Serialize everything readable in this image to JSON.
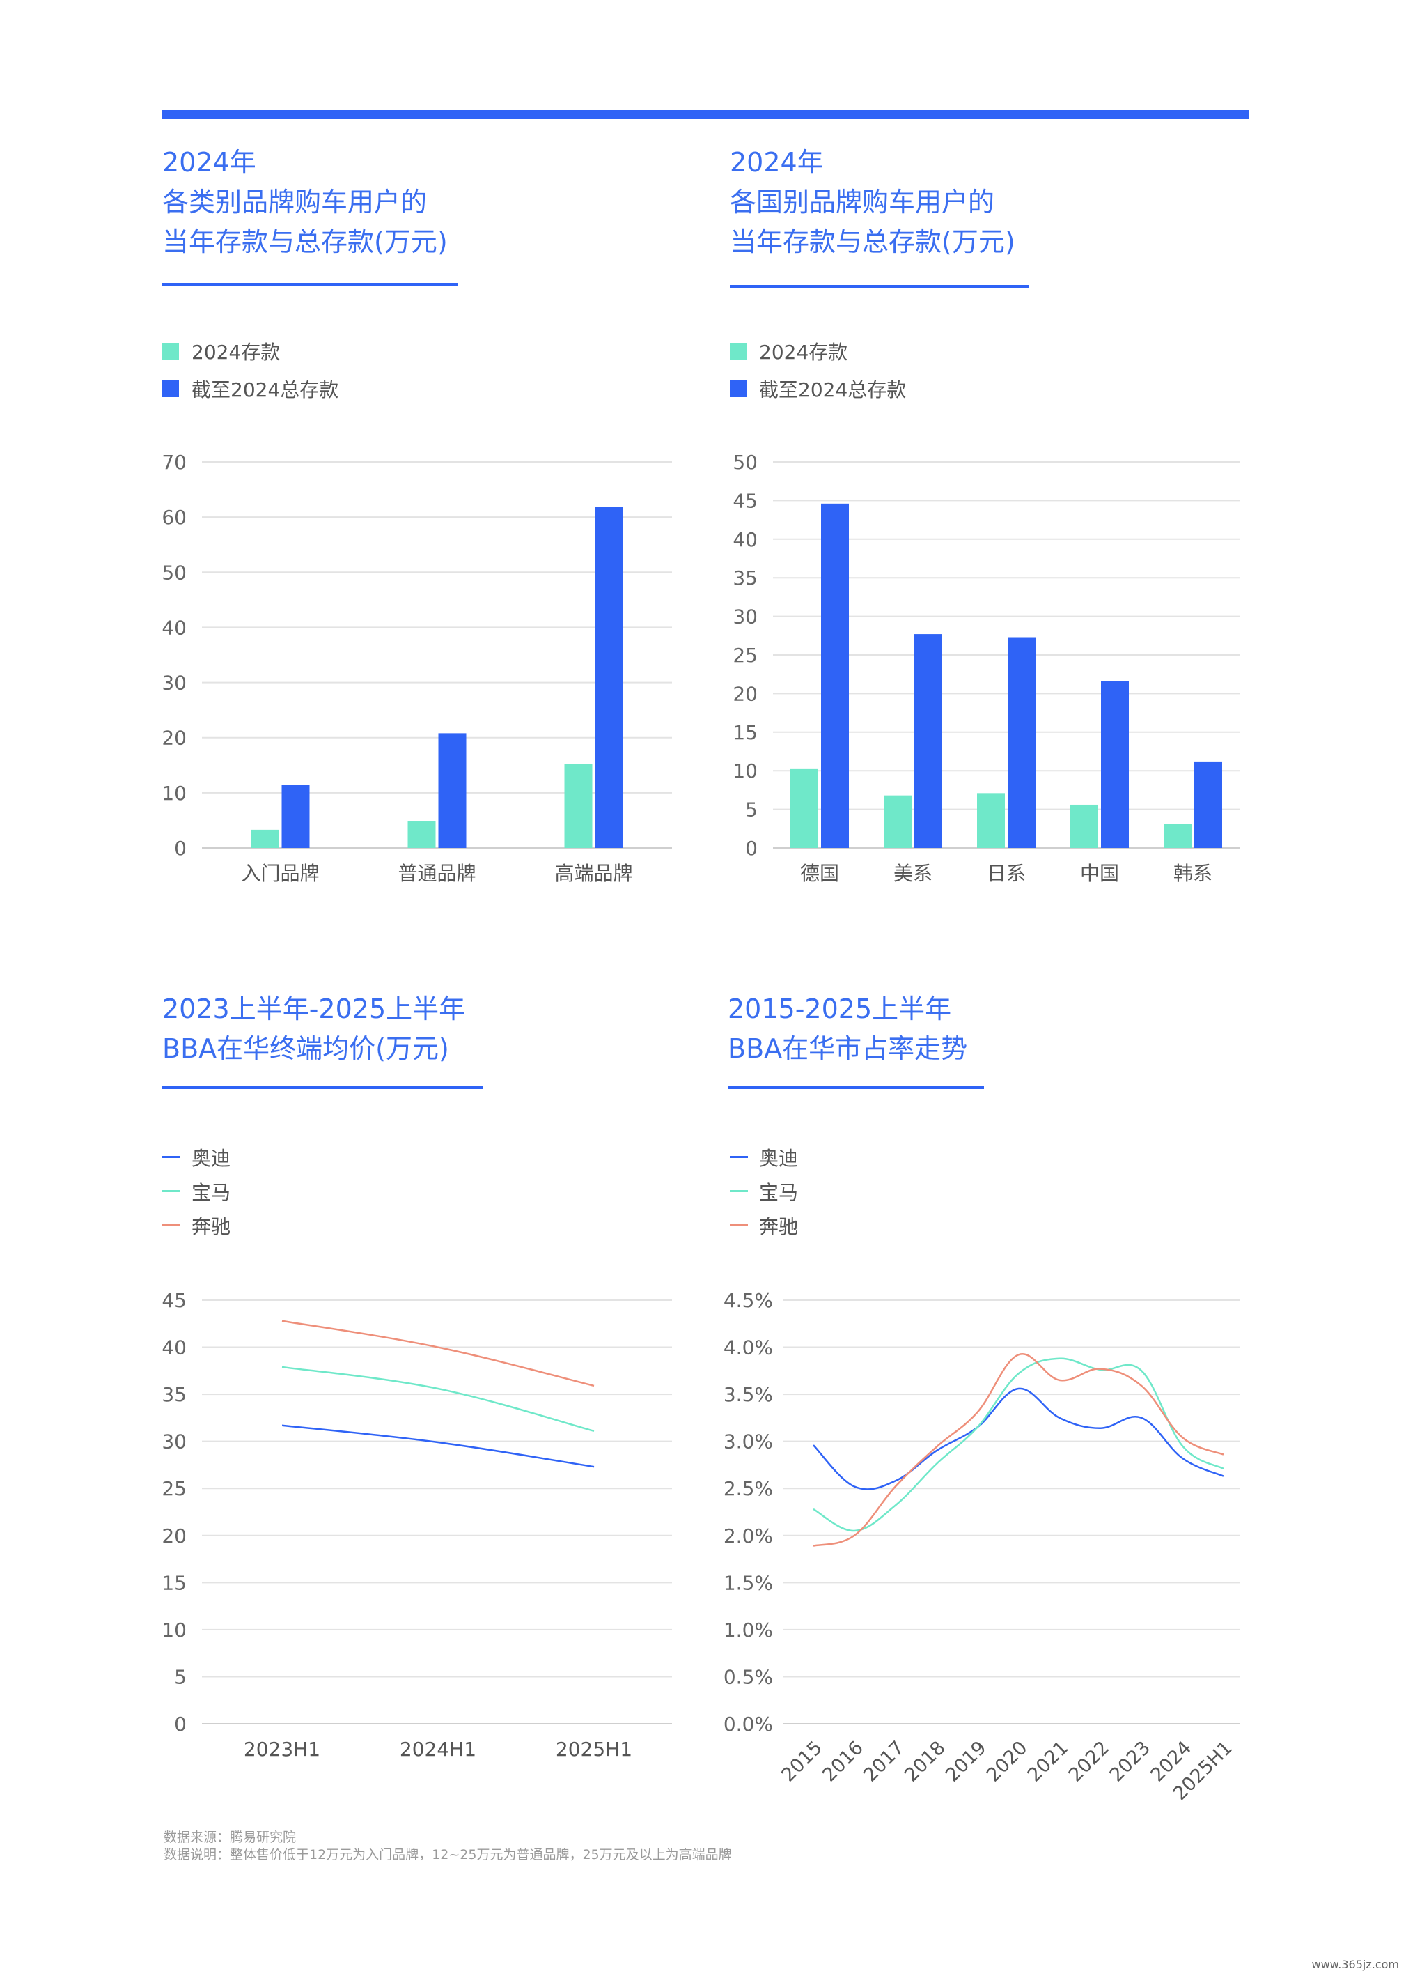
{
  "colors": {
    "accent": "#2f63f6",
    "mint": "#6fe8c9",
    "blue": "#2f63f6",
    "salmon": "#ee8f7a",
    "grid": "#e3e3e3",
    "text": "#555555"
  },
  "panels": {
    "p1": {
      "title": "2024年\n各类别品牌购车用户的\n当年存款与总存款(万元)",
      "legend": [
        "2024存款",
        "截至2024总存款"
      ]
    },
    "p2": {
      "title": "2024年\n各国别品牌购车用户的\n当年存款与总存款(万元)",
      "legend": [
        "2024存款",
        "截至2024总存款"
      ]
    },
    "p3": {
      "title": "2023上半年-2025上半年\nBBA在华终端均价(万元)",
      "legend": [
        "奥迪",
        "宝马",
        "奔驰"
      ]
    },
    "p4": {
      "title": "2015-2025上半年\nBBA在华市占率走势",
      "legend": [
        "奥迪",
        "宝马",
        "奔驰"
      ]
    }
  },
  "chart_data": [
    {
      "type": "bar",
      "categories": [
        "入门品牌",
        "普通品牌",
        "高端品牌"
      ],
      "series": [
        {
          "name": "2024存款",
          "values": [
            3.3,
            4.8,
            15.2
          ]
        },
        {
          "name": "截至2024总存款",
          "values": [
            11.4,
            20.8,
            61.8
          ]
        }
      ],
      "ylim": [
        0,
        70
      ],
      "yticks": [
        0,
        10,
        20,
        30,
        40,
        50,
        60,
        70
      ],
      "ytick_labels": [
        "0",
        "10",
        "20",
        "30",
        "40",
        "50",
        "60",
        "70"
      ],
      "grid": true,
      "legend": "top-left"
    },
    {
      "type": "bar",
      "categories": [
        "德国",
        "美系",
        "日系",
        "中国",
        "韩系"
      ],
      "series": [
        {
          "name": "2024存款",
          "values": [
            10.3,
            6.8,
            7.1,
            5.6,
            3.1
          ]
        },
        {
          "name": "截至2024总存款",
          "values": [
            44.6,
            27.7,
            27.3,
            21.6,
            11.2
          ]
        }
      ],
      "ylim": [
        0,
        50
      ],
      "yticks": [
        0,
        5,
        10,
        15,
        20,
        25,
        30,
        35,
        40,
        45,
        50
      ],
      "ytick_labels": [
        "0",
        "5",
        "10",
        "15",
        "20",
        "25",
        "30",
        "35",
        "40",
        "45",
        "50"
      ],
      "grid": true,
      "legend": "top-left"
    },
    {
      "type": "line",
      "x": [
        "2023H1",
        "2024H1",
        "2025H1"
      ],
      "series": [
        {
          "name": "奥迪",
          "values": [
            31.7,
            29.9,
            27.3
          ]
        },
        {
          "name": "宝马",
          "values": [
            37.9,
            35.6,
            31.1
          ]
        },
        {
          "name": "奔驰",
          "values": [
            42.8,
            40.0,
            35.9
          ]
        }
      ],
      "ylim": [
        0,
        45
      ],
      "yticks": [
        0,
        5,
        10,
        15,
        20,
        25,
        30,
        35,
        40,
        45
      ],
      "ytick_labels": [
        "0",
        "5",
        "10",
        "15",
        "20",
        "25",
        "30",
        "35",
        "40",
        "45"
      ],
      "grid": true,
      "legend": "top-left"
    },
    {
      "type": "line",
      "x": [
        "2015",
        "2016",
        "2017",
        "2018",
        "2019",
        "2020",
        "2021",
        "2022",
        "2023",
        "2024",
        "2025H1"
      ],
      "series": [
        {
          "name": "奥迪",
          "values": [
            2.96,
            2.52,
            2.58,
            2.9,
            3.15,
            3.56,
            3.25,
            3.14,
            3.25,
            2.82,
            2.63
          ]
        },
        {
          "name": "宝马",
          "values": [
            2.28,
            2.05,
            2.32,
            2.76,
            3.15,
            3.72,
            3.88,
            3.76,
            3.75,
            2.95,
            2.71
          ]
        },
        {
          "name": "奔驰",
          "values": [
            1.89,
            2.0,
            2.52,
            2.94,
            3.31,
            3.92,
            3.65,
            3.77,
            3.59,
            3.04,
            2.86
          ]
        }
      ],
      "ylim": [
        0,
        4.5
      ],
      "yticks": [
        0,
        0.5,
        1,
        1.5,
        2,
        2.5,
        3,
        3.5,
        4,
        4.5
      ],
      "ytick_labels": [
        "0.0%",
        "0.5%",
        "1.0%",
        "1.5%",
        "2.0%",
        "2.5%",
        "3.0%",
        "3.5%",
        "4.0%",
        "4.5%"
      ],
      "grid": true,
      "legend": "top-left"
    }
  ],
  "footnote": {
    "source": "数据来源：腾易研究院",
    "note": "数据说明：整体售价低于12万元为入门品牌，12~25万元为普通品牌，25万元及以上为高端品牌"
  },
  "watermark": "www.365jz.com"
}
